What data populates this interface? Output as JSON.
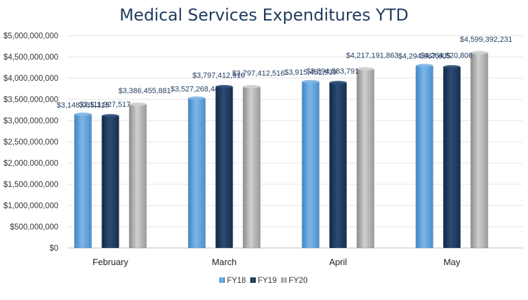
{
  "chart_data": {
    "type": "bar",
    "title": "Medical Services Expenditures YTD",
    "categories": [
      "February",
      "March",
      "April",
      "May"
    ],
    "series": [
      {
        "name": "FY18",
        "color": "#5b9bd5",
        "values": [
          3148035313,
          3527268441,
          3915451939,
          4294967805
        ],
        "labels": [
          "$3,148,035,313",
          "$3,527,268,441",
          "$3,915,451,939",
          "$4,294,967,805"
        ]
      },
      {
        "name": "FY19",
        "color": "#1f3a5f",
        "values": [
          3111927517,
          3797412516,
          3894583791,
          4264520806
        ],
        "labels": [
          "$3,111,927,517",
          "$3,797,412,516",
          "$3,894,583,791",
          "$4,264,520,806"
        ]
      },
      {
        "name": "FY20",
        "color": "#a6a6a6",
        "values": [
          3386455881,
          3797412516,
          4217191863,
          4599392231
        ],
        "labels": [
          "$3,386,455,881",
          "$3,797,412,516",
          "$4,217,191,863",
          "$4,599,392,231"
        ]
      }
    ],
    "ylim": [
      0,
      5000000000
    ],
    "yticks": [
      {
        "value": 0,
        "label": "$0"
      },
      {
        "value": 500000000,
        "label": "$500,000,000"
      },
      {
        "value": 1000000000,
        "label": "$1,000,000,000"
      },
      {
        "value": 1500000000,
        "label": "$1,500,000,000"
      },
      {
        "value": 2000000000,
        "label": "$2,000,000,000"
      },
      {
        "value": 2500000000,
        "label": "$2,500,000,000"
      },
      {
        "value": 3000000000,
        "label": "$3,000,000,000"
      },
      {
        "value": 3500000000,
        "label": "$3,500,000,000"
      },
      {
        "value": 4000000000,
        "label": "$4,000,000,000"
      },
      {
        "value": 4500000000,
        "label": "$4,500,000,000"
      },
      {
        "value": 5000000000,
        "label": "$5,000,000,000"
      }
    ],
    "grid": true,
    "legend_position": "bottom"
  }
}
